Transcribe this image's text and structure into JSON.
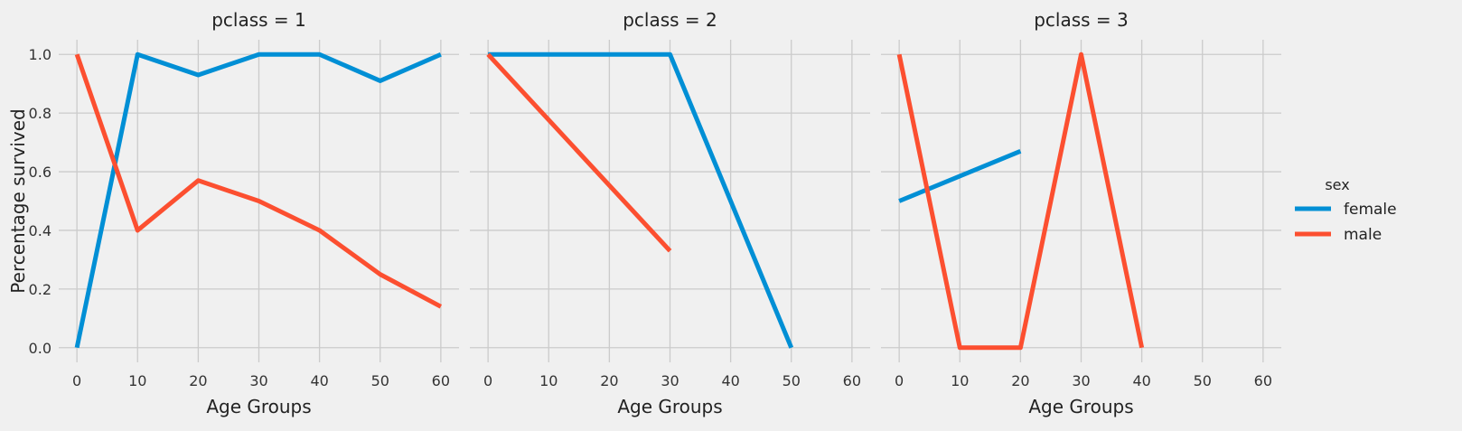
{
  "chart_data": {
    "type": "line",
    "xlabel": "Age Groups",
    "ylabel": "Percentage survived",
    "xlim": [
      -3,
      63
    ],
    "ylim": [
      -0.05,
      1.05
    ],
    "x_ticks": [
      0,
      10,
      20,
      30,
      40,
      50,
      60
    ],
    "y_ticks": [
      0.0,
      0.2,
      0.4,
      0.6,
      0.8,
      1.0
    ],
    "x_tick_labels": [
      "0",
      "10",
      "20",
      "30",
      "40",
      "50",
      "60"
    ],
    "y_tick_labels": [
      "0.0",
      "0.2",
      "0.4",
      "0.6",
      "0.8",
      "1.0"
    ],
    "grid": true,
    "legend": {
      "title": "sex",
      "placement": "right",
      "entries": [
        {
          "label": "female",
          "color": "#008fd5"
        },
        {
          "label": "male",
          "color": "#fc4f30"
        }
      ]
    },
    "panels": [
      {
        "title": "pclass = 1",
        "series": [
          {
            "name": "female",
            "color": "#008fd5",
            "points": [
              [
                0,
                0.0
              ],
              [
                10,
                1.0
              ],
              [
                20,
                0.93
              ],
              [
                30,
                1.0
              ],
              [
                40,
                1.0
              ],
              [
                50,
                0.91
              ],
              [
                60,
                1.0
              ]
            ]
          },
          {
            "name": "male",
            "color": "#fc4f30",
            "points": [
              [
                0,
                1.0
              ],
              [
                10,
                0.4
              ],
              [
                20,
                0.57
              ],
              [
                30,
                0.5
              ],
              [
                40,
                0.4
              ],
              [
                50,
                0.25
              ],
              [
                60,
                0.14
              ]
            ]
          }
        ]
      },
      {
        "title": "pclass = 2",
        "series": [
          {
            "name": "female",
            "color": "#008fd5",
            "points": [
              [
                0,
                1.0
              ],
              [
                30,
                1.0
              ],
              [
                50,
                0.0
              ]
            ]
          },
          {
            "name": "male",
            "color": "#fc4f30",
            "points": [
              [
                0,
                1.0
              ],
              [
                30,
                0.33
              ]
            ]
          }
        ]
      },
      {
        "title": "pclass = 3",
        "series": [
          {
            "name": "female",
            "color": "#008fd5",
            "points": [
              [
                0,
                0.5
              ],
              [
                20,
                0.67
              ]
            ]
          },
          {
            "name": "male",
            "color": "#fc4f30",
            "points": [
              [
                0,
                1.0
              ],
              [
                10,
                0.0
              ],
              [
                20,
                0.0
              ],
              [
                30,
                1.0
              ],
              [
                40,
                0.0
              ]
            ]
          }
        ]
      }
    ]
  }
}
